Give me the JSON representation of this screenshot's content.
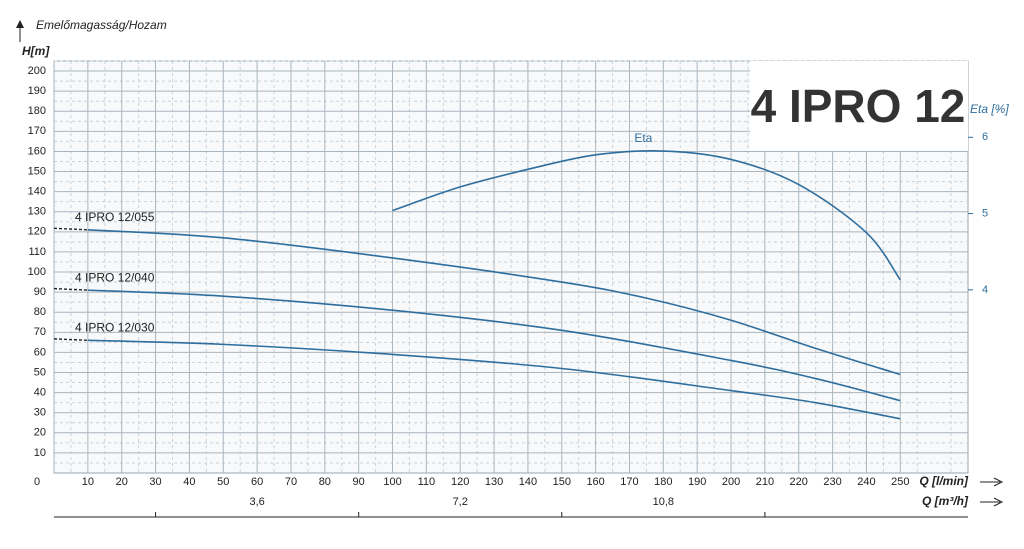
{
  "chart_data": {
    "type": "line",
    "title": "4 IPRO 12",
    "y_label": "H[m]",
    "top_label": "Emelőmagasság/Hozam",
    "y2_label": "Eta [%]",
    "x_label": "Q [l/min]",
    "x2_label": "Q [m³/h]",
    "xlim": [
      0,
      270
    ],
    "xticks": [
      0,
      10,
      20,
      30,
      40,
      50,
      60,
      70,
      80,
      90,
      100,
      110,
      120,
      130,
      140,
      150,
      160,
      170,
      180,
      190,
      200,
      210,
      220,
      230,
      240,
      250
    ],
    "ylim": [
      0,
      205
    ],
    "yticks": [
      10,
      20,
      30,
      40,
      50,
      60,
      70,
      80,
      90,
      100,
      110,
      120,
      130,
      140,
      150,
      160,
      170,
      180,
      190,
      200
    ],
    "y2lim": [
      1.6,
      7.0
    ],
    "y2ticks": [
      4,
      5,
      6
    ],
    "x2lim": [
      0,
      16.2
    ],
    "x2ticks": [
      {
        "value": 3.6,
        "label": "3,6"
      },
      {
        "value": 7.2,
        "label": "7,2"
      },
      {
        "value": 10.8,
        "label": "10,8"
      }
    ],
    "x2minor": [
      1.8,
      5.4,
      9,
      12.6
    ],
    "grid": true,
    "color": "#2e6e9e",
    "series": [
      {
        "name": "4 IPRO 12/055",
        "color": "#2e6e9e",
        "x": [
          10,
          50,
          100,
          150,
          175,
          200,
          225,
          250
        ],
        "values": [
          121,
          117,
          107,
          95,
          87,
          76,
          62,
          49
        ]
      },
      {
        "name": "4 IPRO 12/040",
        "color": "#2e6e9e",
        "x": [
          10,
          50,
          100,
          150,
          200,
          225,
          250
        ],
        "values": [
          91,
          88,
          81,
          71,
          56,
          47,
          36
        ]
      },
      {
        "name": "4 IPRO 12/030",
        "color": "#2e6e9e",
        "x": [
          10,
          50,
          100,
          150,
          200,
          225,
          250
        ],
        "values": [
          66,
          64,
          59,
          52,
          41,
          35,
          27
        ]
      },
      {
        "name": "Eta",
        "color": "#2e6e9e",
        "axis": "y2",
        "x": [
          100,
          120,
          140,
          160,
          180,
          200,
          220,
          240,
          250
        ],
        "values": [
          5.04,
          5.35,
          5.58,
          5.77,
          5.82,
          5.71,
          5.38,
          4.75,
          4.13
        ]
      }
    ]
  }
}
